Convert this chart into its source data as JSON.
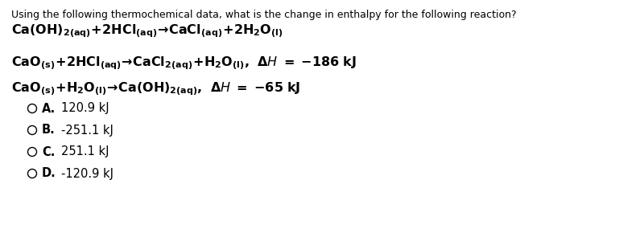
{
  "background_color": "#ffffff",
  "title_line1": "Using the following thermochemical data, what is the change in enthalpy for the following reaction?",
  "title_fontsize": 9.0,
  "reaction_fontsize": 11.5,
  "option_fontsize": 10.5,
  "text_color": "#000000",
  "options": [
    {
      "label": "A.",
      "value": "120.9 kJ"
    },
    {
      "label": "B.",
      "value": "-251.1 kJ"
    },
    {
      "label": "C.",
      "value": "251.1 kJ"
    },
    {
      "label": "D.",
      "value": "-120.9 kJ"
    }
  ]
}
